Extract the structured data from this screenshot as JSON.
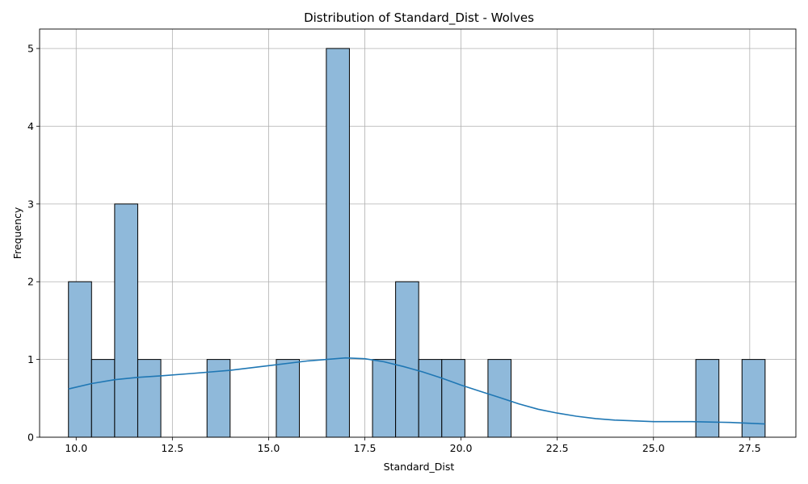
{
  "chart_data": {
    "type": "bar",
    "title": "Distribution of Standard_Dist - Wolves",
    "xlabel": "Standard_Dist",
    "ylabel": "Frequency",
    "xlim": [
      9.05,
      28.7
    ],
    "ylim": [
      0,
      5.25
    ],
    "xticks": [
      10.0,
      12.5,
      15.0,
      17.5,
      20.0,
      22.5,
      25.0,
      27.5
    ],
    "xtick_labels": [
      "10.0",
      "12.5",
      "15.0",
      "17.5",
      "20.0",
      "22.5",
      "25.0",
      "27.5"
    ],
    "yticks": [
      0,
      1,
      2,
      3,
      4,
      5
    ],
    "ytick_labels": [
      "0",
      "1",
      "2",
      "3",
      "4",
      "5"
    ],
    "grid": true,
    "bar_color": "#8fb9da",
    "bar_edge_color": "#000000",
    "kde_color": "#1f77b4",
    "bins": [
      {
        "x0": 9.8,
        "x1": 10.4,
        "count": 2
      },
      {
        "x0": 10.4,
        "x1": 11.0,
        "count": 1
      },
      {
        "x0": 11.0,
        "x1": 11.6,
        "count": 3
      },
      {
        "x0": 11.6,
        "x1": 12.2,
        "count": 1
      },
      {
        "x0": 13.4,
        "x1": 14.0,
        "count": 1
      },
      {
        "x0": 15.2,
        "x1": 15.8,
        "count": 1
      },
      {
        "x0": 16.5,
        "x1": 17.1,
        "count": 5
      },
      {
        "x0": 17.7,
        "x1": 18.3,
        "count": 1
      },
      {
        "x0": 18.3,
        "x1": 18.9,
        "count": 2
      },
      {
        "x0": 18.9,
        "x1": 19.5,
        "count": 1
      },
      {
        "x0": 19.5,
        "x1": 20.1,
        "count": 1
      },
      {
        "x0": 20.7,
        "x1": 21.3,
        "count": 1
      },
      {
        "x0": 26.1,
        "x1": 26.7,
        "count": 1
      },
      {
        "x0": 27.3,
        "x1": 27.9,
        "count": 1
      }
    ],
    "kde": {
      "x": [
        9.8,
        10.4,
        11.0,
        11.6,
        12.2,
        13.0,
        14.0,
        15.0,
        16.0,
        17.0,
        17.5,
        18.0,
        18.5,
        19.0,
        19.5,
        20.0,
        20.5,
        21.0,
        21.5,
        22.0,
        22.5,
        23.0,
        23.5,
        24.0,
        25.0,
        26.0,
        27.0,
        27.9
      ],
      "y": [
        0.62,
        0.69,
        0.74,
        0.77,
        0.79,
        0.82,
        0.86,
        0.92,
        0.98,
        1.02,
        1.01,
        0.97,
        0.91,
        0.84,
        0.76,
        0.67,
        0.59,
        0.51,
        0.43,
        0.36,
        0.31,
        0.27,
        0.24,
        0.22,
        0.2,
        0.2,
        0.19,
        0.17
      ]
    }
  }
}
